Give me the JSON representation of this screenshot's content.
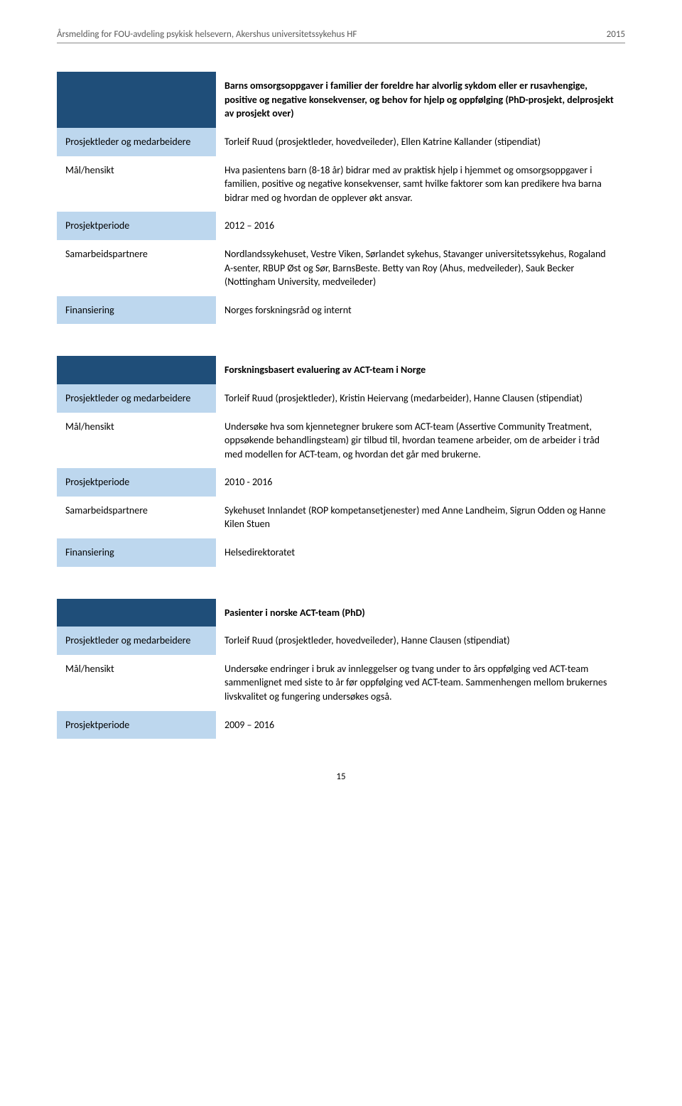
{
  "header": {
    "title": "Årsmelding for FOU-avdeling psykisk helsevern, Akershus universitetssykehus HF",
    "year": "2015"
  },
  "colors": {
    "darkBlue": "#1f4e79",
    "lightBlue": "#bdd7ee",
    "headerGrey": "#595959",
    "ruleGrey": "#8a8a8a"
  },
  "labels": {
    "leaderStaff": "Prosjektleder og medarbeidere",
    "purpose": "Mål/hensikt",
    "period": "Prosjektperiode",
    "partners": "Samarbeidspartnere",
    "funding": "Finansiering"
  },
  "project1": {
    "title": "Barns omsorgsoppgaver i familier der foreldre har alvorlig sykdom eller er rusavhengige, positive og negative konsekvenser, og behov for hjelp og oppfølging (PhD-prosjekt, delprosjekt av prosjekt over)",
    "leaderStaff": "Torleif Ruud (prosjektleder, hovedveileder), Ellen Katrine Kallander (stipendiat)",
    "purpose": "Hva pasientens barn (8-18 år) bidrar med av praktisk hjelp i hjemmet og omsorgsoppgaver i familien, positive og negative konsekvenser, samt hvilke faktorer som kan predikere hva barna bidrar med og hvordan de opplever økt ansvar.",
    "period": "2012 – 2016",
    "partners": "Nordlandssykehuset, Vestre Viken, Sørlandet sykehus, Stavanger universitetssykehus, Rogaland A-senter, RBUP Øst og Sør, BarnsBeste. Betty van Roy (Ahus, medveileder), Sauk Becker (Nottingham University, medveileder)",
    "funding": "Norges forskningsråd og internt"
  },
  "project2": {
    "title": "Forskningsbasert evaluering av ACT-team i Norge",
    "leaderStaff": "Torleif Ruud (prosjektleder), Kristin Heiervang (medarbeider), Hanne Clausen (stipendiat)",
    "purpose": "Undersøke hva som kjennetegner brukere som ACT-team (Assertive Community Treatment, oppsøkende behandlingsteam) gir tilbud til, hvordan teamene arbeider, om de arbeider i tråd med modellen for ACT-team, og hvordan det går med brukerne.",
    "period": "2010 - 2016",
    "partners": "Sykehuset Innlandet (ROP kompetansetjenester) med Anne Landheim, Sigrun Odden og Hanne Kilen Stuen",
    "funding": "Helsedirektoratet"
  },
  "project3": {
    "title": "Pasienter i norske ACT-team (PhD)",
    "leaderStaff": "Torleif Ruud (prosjektleder, hovedveileder), Hanne Clausen (stipendiat)",
    "purpose": "Undersøke endringer i bruk av innleggelser og tvang under to års oppfølging ved ACT-team sammenlignet med siste to år før oppfølging ved ACT-team. Sammenhengen mellom brukernes livskvalitet og fungering undersøkes også.",
    "period": "2009 – 2016"
  },
  "pageNumber": "15"
}
